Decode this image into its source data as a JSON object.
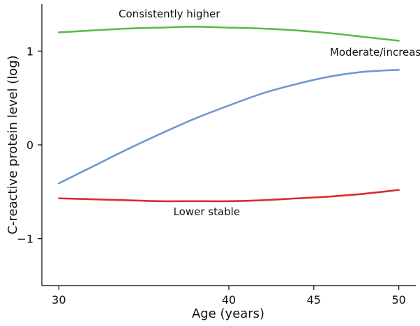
{
  "chart_data": {
    "type": "line",
    "title": "",
    "xlabel": "Age (years)",
    "ylabel": "C-reactive protein level (log)",
    "xlim": [
      29,
      51
    ],
    "ylim": [
      -1.5,
      1.5
    ],
    "x_ticks": [
      {
        "value": 30,
        "label": "30"
      },
      {
        "value": 40,
        "label": "40"
      },
      {
        "value": 45,
        "label": "45"
      },
      {
        "value": 50,
        "label": "50"
      }
    ],
    "y_ticks": [
      {
        "value": 1,
        "label": "1"
      },
      {
        "value": 0,
        "label": "0"
      },
      {
        "value": -1,
        "label": "−1"
      }
    ],
    "grid": false,
    "legend": "none",
    "series": [
      {
        "name": "Consistently higher",
        "color": "#5cb94a",
        "label_anchor": {
          "x": 36.5,
          "y": 1.36
        },
        "x": [
          30,
          32,
          34,
          36,
          38,
          40,
          42,
          44,
          46,
          48,
          50
        ],
        "y": [
          1.2,
          1.22,
          1.24,
          1.25,
          1.26,
          1.25,
          1.24,
          1.22,
          1.19,
          1.15,
          1.11
        ]
      },
      {
        "name": "Moderate/increasing",
        "color": "#6e98cf",
        "label_anchor": {
          "x": 49.1,
          "y": 0.95
        },
        "x": [
          30,
          32,
          34,
          36,
          38,
          40,
          42,
          44,
          46,
          48,
          50
        ],
        "y": [
          -0.41,
          -0.23,
          -0.05,
          0.12,
          0.28,
          0.42,
          0.55,
          0.65,
          0.73,
          0.78,
          0.8
        ]
      },
      {
        "name": "Lower stable",
        "color": "#e02a2a",
        "label_anchor": {
          "x": 38.7,
          "y": -0.75
        },
        "x": [
          30,
          32,
          34,
          36,
          38,
          40,
          42,
          44,
          46,
          48,
          50
        ],
        "y": [
          -0.57,
          -0.58,
          -0.59,
          -0.6,
          -0.6,
          -0.6,
          -0.59,
          -0.57,
          -0.55,
          -0.52,
          -0.48
        ]
      }
    ]
  }
}
